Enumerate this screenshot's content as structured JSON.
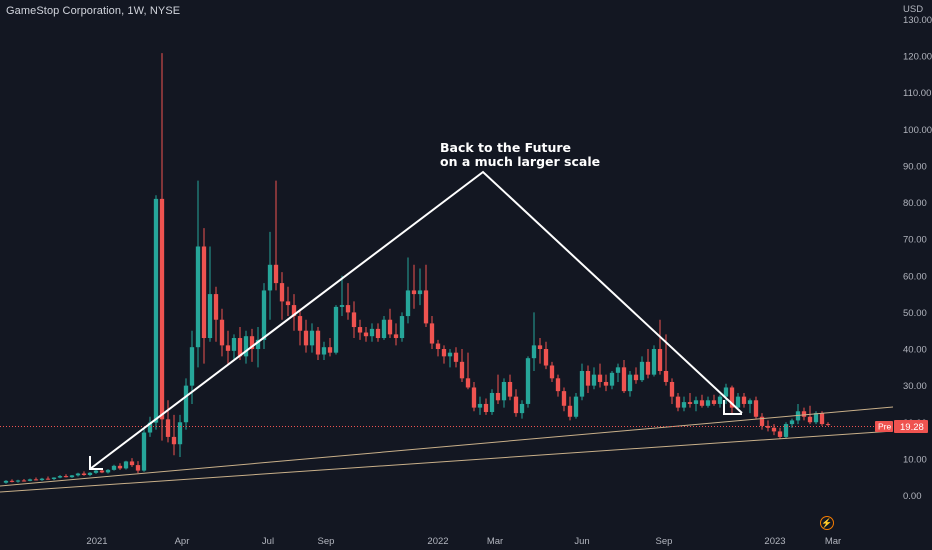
{
  "header": {
    "symbol": "GameStop Corporation, 1W, NYSE"
  },
  "price_axis": {
    "currency": "USD",
    "ticks": [
      "130.00",
      "120.00",
      "110.00",
      "100.00",
      "90.00",
      "80.00",
      "70.00",
      "60.00",
      "50.00",
      "40.00",
      "30.00",
      "20.00",
      "10.00",
      "0.00"
    ]
  },
  "time_axis": {
    "ticks": [
      "2021",
      "Apr",
      "Jul",
      "Sep",
      "2022",
      "Mar",
      "Jun",
      "Sep",
      "2023",
      "Mar"
    ]
  },
  "annotation": {
    "line1": "Back to the Future",
    "line2": "on a much larger scale"
  },
  "last_price": {
    "prefix": "Pre",
    "value": "19.28"
  },
  "icons": {
    "flash": "lightning-icon"
  },
  "colors": {
    "background": "#131722",
    "up": "#26a69a",
    "down": "#ef5350",
    "trend": "#c9b08a",
    "arrow": "#ffffff",
    "price_line": "#ef5350"
  },
  "chart_data": {
    "type": "candlestick",
    "title": "GameStop Corporation, 1W, NYSE",
    "xlabel": "",
    "ylabel": "USD",
    "ylim": [
      -5,
      133
    ],
    "grid": false,
    "series": [
      {
        "name": "GME",
        "ohlc": [
          [
            3.5,
            4.2,
            3.2,
            4.0
          ],
          [
            4.0,
            4.4,
            3.6,
            3.8
          ],
          [
            3.8,
            4.3,
            3.5,
            4.1
          ],
          [
            4.1,
            4.5,
            3.8,
            4.0
          ],
          [
            4.0,
            4.6,
            3.9,
            4.4
          ],
          [
            4.4,
            4.9,
            4.1,
            4.2
          ],
          [
            4.2,
            4.8,
            4.0,
            4.6
          ],
          [
            4.6,
            5.2,
            4.3,
            4.5
          ],
          [
            4.5,
            5.0,
            4.2,
            4.9
          ],
          [
            4.9,
            5.6,
            4.7,
            5.3
          ],
          [
            5.3,
            5.8,
            4.9,
            5.0
          ],
          [
            5.0,
            5.6,
            4.8,
            5.5
          ],
          [
            5.5,
            6.2,
            5.2,
            6.0
          ],
          [
            6.0,
            6.6,
            5.4,
            5.6
          ],
          [
            5.6,
            6.4,
            5.3,
            6.2
          ],
          [
            6.2,
            7.0,
            5.9,
            6.8
          ],
          [
            6.8,
            7.5,
            6.1,
            6.3
          ],
          [
            6.3,
            7.2,
            6.0,
            7.0
          ],
          [
            7.0,
            8.4,
            6.8,
            8.1
          ],
          [
            8.1,
            8.8,
            7.0,
            7.4
          ],
          [
            7.4,
            9.5,
            7.1,
            9.3
          ],
          [
            9.3,
            10.2,
            7.8,
            8.3
          ],
          [
            8.3,
            9.4,
            6.1,
            6.8
          ],
          [
            6.8,
            18.5,
            6.5,
            17.2
          ],
          [
            17.2,
            21.5,
            16.0,
            19.9
          ],
          [
            19.9,
            82.0,
            18.0,
            81.0
          ],
          [
            81.0,
            120.8,
            15.0,
            20.8
          ],
          [
            20.8,
            26.0,
            14.5,
            16.0
          ],
          [
            16.0,
            22.0,
            11.0,
            14.0
          ],
          [
            14.0,
            22.0,
            10.5,
            20.0
          ],
          [
            20.0,
            32.0,
            18.0,
            30.0
          ],
          [
            30.0,
            45.0,
            25.0,
            40.5
          ],
          [
            40.5,
            86.0,
            35.0,
            68.0
          ],
          [
            68.0,
            73.0,
            36.0,
            43.0
          ],
          [
            43.0,
            68.0,
            42.0,
            55.0
          ],
          [
            55.0,
            57.0,
            42.0,
            48.0
          ],
          [
            48.0,
            51.0,
            38.0,
            41.0
          ],
          [
            41.0,
            45.0,
            35.5,
            39.5
          ],
          [
            39.5,
            44.0,
            37.0,
            43.0
          ],
          [
            43.0,
            46.0,
            37.0,
            38.0
          ],
          [
            38.0,
            45.0,
            36.0,
            43.5
          ],
          [
            43.5,
            45.5,
            36.5,
            40.0
          ],
          [
            40.0,
            46.0,
            35.0,
            42.5
          ],
          [
            42.5,
            58.0,
            40.0,
            56.0
          ],
          [
            56.0,
            72.0,
            48.0,
            63.0
          ],
          [
            63.0,
            86.0,
            56.0,
            58.0
          ],
          [
            58.0,
            61.0,
            48.0,
            53.0
          ],
          [
            53.0,
            57.0,
            49.0,
            52.0
          ],
          [
            52.0,
            55.0,
            45.0,
            49.0
          ],
          [
            49.0,
            51.0,
            41.0,
            45.0
          ],
          [
            45.0,
            48.0,
            39.0,
            41.0
          ],
          [
            41.0,
            47.0,
            39.0,
            45.0
          ],
          [
            45.0,
            46.0,
            37.0,
            38.5
          ],
          [
            38.5,
            42.0,
            37.0,
            40.5
          ],
          [
            40.5,
            43.0,
            38.0,
            39.0
          ],
          [
            39.0,
            52.0,
            38.5,
            51.5
          ],
          [
            51.5,
            60.0,
            49.0,
            52.0
          ],
          [
            52.0,
            58.0,
            48.0,
            50.0
          ],
          [
            50.0,
            53.0,
            43.0,
            46.0
          ],
          [
            46.0,
            48.0,
            42.5,
            44.5
          ],
          [
            44.5,
            46.0,
            42.0,
            43.5
          ],
          [
            43.5,
            47.0,
            42.0,
            45.5
          ],
          [
            45.5,
            47.0,
            42.0,
            43.0
          ],
          [
            43.0,
            49.0,
            42.5,
            48.0
          ],
          [
            48.0,
            51.0,
            43.0,
            44.0
          ],
          [
            44.0,
            47.0,
            41.0,
            43.0
          ],
          [
            43.0,
            50.0,
            42.0,
            49.0
          ],
          [
            49.0,
            65.0,
            47.0,
            56.0
          ],
          [
            56.0,
            63.0,
            51.0,
            55.0
          ],
          [
            55.0,
            62.0,
            52.0,
            56.0
          ],
          [
            56.0,
            63.0,
            46.0,
            47.0
          ],
          [
            47.0,
            49.0,
            40.0,
            41.5
          ],
          [
            41.5,
            42.5,
            38.0,
            40.0
          ],
          [
            40.0,
            41.0,
            36.0,
            38.0
          ],
          [
            38.0,
            40.0,
            35.0,
            39.0
          ],
          [
            39.0,
            40.5,
            35.0,
            36.5
          ],
          [
            36.5,
            40.0,
            31.0,
            32.0
          ],
          [
            32.0,
            39.0,
            29.0,
            29.5
          ],
          [
            29.5,
            31.0,
            23.0,
            24.0
          ],
          [
            24.0,
            27.0,
            22.0,
            25.0
          ],
          [
            25.0,
            26.5,
            22.0,
            22.8
          ],
          [
            22.8,
            29.0,
            22.0,
            28.0
          ],
          [
            28.0,
            33.0,
            25.0,
            26.0
          ],
          [
            26.0,
            32.0,
            24.0,
            31.0
          ],
          [
            31.0,
            33.0,
            26.0,
            27.0
          ],
          [
            27.0,
            29.0,
            21.5,
            22.5
          ],
          [
            22.5,
            26.0,
            21.0,
            25.0
          ],
          [
            25.0,
            38.0,
            24.0,
            37.5
          ],
          [
            37.5,
            50.0,
            34.0,
            41.0
          ],
          [
            41.0,
            43.0,
            36.0,
            40.0
          ],
          [
            40.0,
            42.0,
            34.5,
            35.5
          ],
          [
            35.5,
            36.5,
            31.0,
            32.0
          ],
          [
            32.0,
            33.0,
            27.0,
            28.5
          ],
          [
            28.5,
            29.5,
            23.0,
            24.5
          ],
          [
            24.5,
            27.0,
            20.5,
            21.5
          ],
          [
            21.5,
            28.0,
            21.0,
            27.0
          ],
          [
            27.0,
            36.0,
            26.0,
            34.0
          ],
          [
            34.0,
            35.5,
            28.0,
            30.0
          ],
          [
            30.0,
            35.0,
            29.0,
            33.0
          ],
          [
            33.0,
            36.0,
            29.5,
            31.0
          ],
          [
            31.0,
            33.0,
            28.5,
            30.0
          ],
          [
            30.0,
            34.0,
            29.0,
            33.5
          ],
          [
            33.5,
            36.0,
            31.0,
            35.0
          ],
          [
            35.0,
            37.0,
            28.0,
            28.5
          ],
          [
            28.5,
            34.0,
            27.0,
            33.0
          ],
          [
            33.0,
            35.0,
            30.5,
            31.5
          ],
          [
            31.5,
            38.0,
            31.0,
            36.5
          ],
          [
            36.5,
            40.0,
            32.0,
            33.0
          ],
          [
            33.0,
            41.0,
            32.5,
            40.0
          ],
          [
            40.0,
            48.0,
            33.0,
            34.0
          ],
          [
            34.0,
            44.0,
            30.0,
            31.0
          ],
          [
            31.0,
            32.0,
            25.0,
            27.0
          ],
          [
            27.0,
            28.0,
            23.0,
            24.0
          ],
          [
            24.0,
            27.0,
            23.0,
            25.5
          ],
          [
            25.5,
            28.0,
            24.0,
            25.0
          ],
          [
            25.0,
            27.0,
            23.0,
            26.0
          ],
          [
            26.0,
            27.5,
            24.0,
            24.5
          ],
          [
            24.5,
            27.0,
            24.0,
            26.0
          ],
          [
            26.0,
            27.5,
            24.5,
            25.0
          ],
          [
            25.0,
            27.5,
            24.0,
            27.0
          ],
          [
            27.0,
            30.5,
            25.0,
            29.5
          ],
          [
            29.5,
            30.0,
            22.0,
            24.0
          ],
          [
            24.0,
            28.0,
            23.5,
            27.0
          ],
          [
            27.0,
            28.0,
            24.0,
            25.0
          ],
          [
            25.0,
            26.5,
            22.5,
            26.0
          ],
          [
            26.0,
            27.0,
            21.0,
            21.5
          ],
          [
            21.5,
            22.5,
            18.0,
            19.0
          ],
          [
            19.0,
            20.5,
            17.5,
            18.5
          ],
          [
            18.5,
            19.5,
            16.5,
            17.5
          ],
          [
            17.5,
            18.5,
            15.5,
            16.0
          ],
          [
            16.0,
            20.0,
            15.5,
            19.5
          ],
          [
            19.5,
            21.0,
            18.5,
            20.5
          ],
          [
            20.5,
            25.0,
            19.5,
            23.0
          ],
          [
            23.0,
            24.0,
            20.5,
            21.5
          ],
          [
            21.5,
            24.5,
            19.5,
            20.0
          ],
          [
            20.0,
            23.0,
            19.5,
            22.5
          ],
          [
            22.5,
            23.0,
            19.0,
            19.5
          ],
          [
            19.5,
            20.0,
            19.0,
            19.3
          ]
        ]
      }
    ],
    "x_ticks": [
      "2021",
      "Apr",
      "Jul",
      "Sep",
      "2022",
      "Mar",
      "Jun",
      "Sep",
      "2023",
      "Mar"
    ],
    "y_ticks": [
      0,
      10,
      20,
      30,
      40,
      50,
      60,
      70,
      80,
      90,
      100,
      110,
      120,
      130
    ],
    "trendlines": "two rising trend lines (lower support and upper channel line)",
    "annotations": [
      "Back to the Future",
      "on a much larger scale"
    ],
    "last_price": 19.28
  }
}
